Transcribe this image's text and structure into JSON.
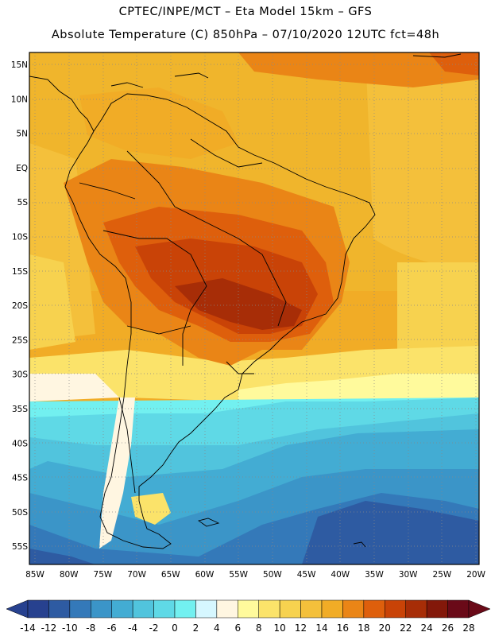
{
  "header": {
    "line1": "CPTEC/INPE/MCT –  Eta Model 15km – GFS",
    "line2": "Absolute Temperature (C) 850hPa – 07/10/2020 12UTC fct=48h"
  },
  "map": {
    "lat_labels": [
      "15N",
      "10N",
      "5N",
      "EQ",
      "5S",
      "10S",
      "15S",
      "20S",
      "25S",
      "30S",
      "35S",
      "40S",
      "45S",
      "50S",
      "55S"
    ],
    "lon_labels": [
      "85W",
      "80W",
      "75W",
      "70W",
      "65W",
      "60W",
      "55W",
      "50W",
      "45W",
      "40W",
      "35W",
      "30W",
      "25W",
      "20W"
    ],
    "lat_range": [
      15,
      -57
    ],
    "lon_range": [
      -86,
      -20
    ]
  },
  "colorbar": {
    "colors": [
      "#27418f",
      "#2e5ba2",
      "#3479b9",
      "#3b95c8",
      "#43acd3",
      "#51c4dd",
      "#5fd9e6",
      "#72f0f0",
      "#d6f7ff",
      "#fff6e1",
      "#fffa9c",
      "#fbe36a",
      "#f7d24f",
      "#f4c03b",
      "#f1ac26",
      "#ea8516",
      "#de5f0c",
      "#c94307",
      "#a72d07",
      "#83180a",
      "#6a0a18"
    ],
    "labels": [
      "-14",
      "-12",
      "-10",
      "-8",
      "-6",
      "-4",
      "-2",
      "0",
      "2",
      "4",
      "6",
      "8",
      "10",
      "12",
      "14",
      "16",
      "18",
      "20",
      "22",
      "24",
      "26",
      "28"
    ]
  }
}
